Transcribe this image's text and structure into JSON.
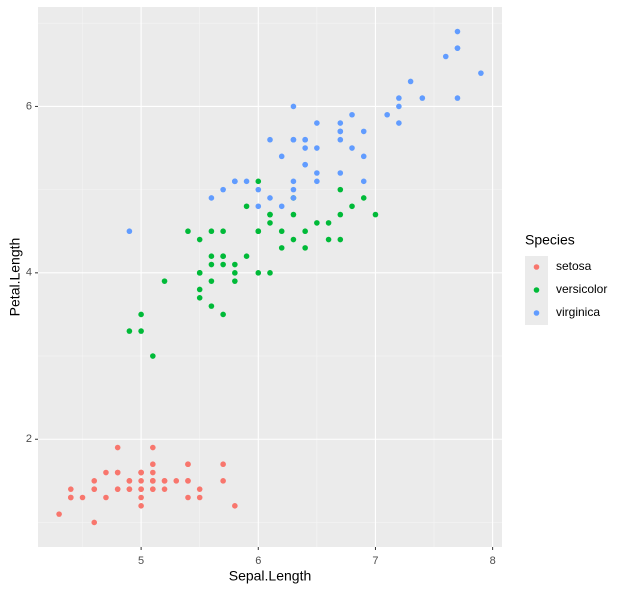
{
  "chart_data": {
    "type": "scatter",
    "x_label": "Sepal.Length",
    "y_label": "Petal.Length",
    "legend_title": "Species",
    "legend_position": "right",
    "grid": true,
    "xlim": [
      4.12,
      8.08
    ],
    "xticks": [
      5,
      6,
      7,
      8
    ],
    "ylim": [
      0.705,
      7.195
    ],
    "yticks": [
      2,
      4,
      6
    ],
    "series": [
      {
        "name": "setosa",
        "color": "#F8766D",
        "x": [
          5.1,
          4.9,
          4.7,
          4.6,
          5.0,
          5.4,
          4.6,
          5.0,
          4.4,
          4.9,
          5.4,
          4.8,
          4.8,
          4.3,
          5.8,
          5.7,
          5.4,
          5.1,
          5.7,
          5.1,
          5.4,
          5.1,
          4.6,
          5.1,
          4.8,
          5.0,
          5.0,
          5.2,
          5.2,
          4.7,
          4.8,
          5.4,
          5.2,
          5.5,
          4.9,
          5.0,
          5.5,
          4.9,
          4.4,
          5.1,
          5.0,
          4.5,
          4.4,
          5.0,
          5.1,
          4.8,
          5.1,
          4.6,
          5.3,
          5.0
        ],
        "values": [
          1.4,
          1.4,
          1.3,
          1.5,
          1.4,
          1.7,
          1.4,
          1.5,
          1.4,
          1.5,
          1.5,
          1.6,
          1.4,
          1.1,
          1.2,
          1.5,
          1.3,
          1.4,
          1.7,
          1.5,
          1.7,
          1.5,
          1.0,
          1.7,
          1.9,
          1.6,
          1.6,
          1.5,
          1.4,
          1.6,
          1.6,
          1.5,
          1.5,
          1.4,
          1.5,
          1.2,
          1.3,
          1.4,
          1.3,
          1.5,
          1.3,
          1.3,
          1.3,
          1.6,
          1.9,
          1.4,
          1.6,
          1.4,
          1.5,
          1.4
        ]
      },
      {
        "name": "versicolor",
        "color": "#00BA38",
        "x": [
          7.0,
          6.4,
          6.9,
          5.5,
          6.5,
          5.7,
          6.3,
          4.9,
          6.6,
          5.2,
          5.0,
          5.9,
          6.0,
          6.1,
          5.6,
          6.7,
          5.6,
          5.8,
          6.2,
          5.6,
          5.9,
          6.1,
          6.3,
          6.1,
          6.4,
          6.6,
          6.8,
          6.7,
          6.0,
          5.7,
          5.5,
          5.5,
          5.8,
          6.0,
          5.4,
          6.0,
          6.7,
          6.3,
          5.6,
          5.5,
          5.5,
          6.1,
          5.8,
          5.0,
          5.6,
          5.7,
          5.7,
          6.2,
          5.1,
          5.7
        ],
        "values": [
          4.7,
          4.5,
          4.9,
          4.0,
          4.6,
          4.5,
          4.7,
          3.3,
          4.6,
          3.9,
          3.5,
          4.2,
          4.0,
          4.7,
          3.6,
          4.4,
          4.5,
          4.1,
          4.5,
          3.9,
          4.8,
          4.0,
          4.9,
          4.7,
          4.3,
          4.4,
          4.8,
          5.0,
          4.5,
          3.5,
          3.8,
          3.7,
          3.9,
          5.1,
          4.5,
          4.5,
          4.7,
          4.4,
          4.1,
          4.0,
          4.4,
          4.6,
          4.0,
          3.3,
          4.2,
          4.2,
          4.2,
          4.3,
          3.0,
          4.1
        ]
      },
      {
        "name": "virginica",
        "color": "#619CFF",
        "x": [
          6.3,
          5.8,
          7.1,
          6.3,
          6.5,
          7.6,
          4.9,
          7.3,
          6.7,
          7.2,
          6.5,
          6.4,
          6.8,
          5.7,
          5.8,
          6.4,
          6.5,
          7.7,
          7.7,
          6.0,
          6.9,
          5.6,
          7.7,
          6.3,
          6.7,
          7.2,
          6.2,
          6.1,
          6.4,
          7.2,
          7.4,
          7.9,
          6.4,
          6.3,
          6.1,
          7.7,
          6.3,
          6.4,
          6.0,
          6.9,
          6.7,
          6.9,
          5.8,
          6.8,
          6.7,
          6.7,
          6.3,
          6.5,
          6.2,
          5.9
        ],
        "values": [
          6.0,
          5.1,
          5.9,
          5.6,
          5.8,
          6.6,
          4.5,
          6.3,
          5.8,
          6.1,
          5.1,
          5.3,
          5.5,
          5.0,
          5.1,
          5.3,
          5.5,
          6.7,
          6.9,
          5.0,
          5.7,
          4.9,
          6.7,
          4.9,
          5.7,
          6.0,
          4.8,
          4.9,
          5.6,
          5.8,
          6.1,
          6.4,
          5.6,
          5.1,
          5.6,
          6.1,
          5.6,
          5.5,
          4.8,
          5.4,
          5.6,
          5.1,
          5.1,
          5.9,
          5.7,
          5.2,
          5.0,
          5.2,
          5.4,
          5.1
        ]
      }
    ]
  }
}
